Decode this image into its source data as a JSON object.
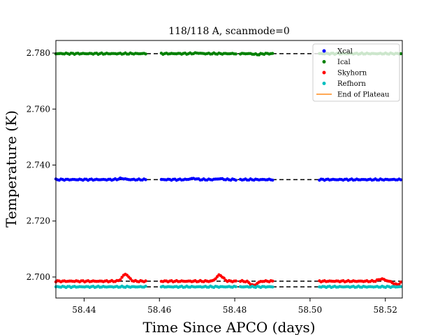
{
  "chart_data": {
    "type": "scatter",
    "title": "118/118 A, scanmode=0",
    "xlabel": "Time Since APCO (days)",
    "ylabel": "Temperature (K)",
    "xlim": [
      58.4325,
      58.5245
    ],
    "ylim": [
      2.6925,
      2.7845
    ],
    "xticks": [
      58.44,
      58.46,
      58.48,
      58.5,
      58.52
    ],
    "xtick_labels": [
      "58.44",
      "58.46",
      "58.48",
      "58.50",
      "58.52"
    ],
    "yticks": [
      2.7,
      2.72,
      2.74,
      2.76,
      2.78
    ],
    "ytick_labels": [
      "2.700",
      "2.720",
      "2.740",
      "2.760",
      "2.780"
    ],
    "legend_position": "top-right",
    "data_segments": [
      [
        58.4325,
        58.4565
      ],
      [
        58.4605,
        58.4805
      ],
      [
        58.4815,
        58.4905
      ],
      [
        58.5025,
        58.5245
      ]
    ],
    "series": [
      {
        "name": "Xcal",
        "color": "#0000ff",
        "base": 2.7348,
        "bumps": [
          [
            58.45,
            0.0004
          ],
          [
            58.469,
            0.0004
          ],
          [
            58.476,
            0.0003
          ]
        ]
      },
      {
        "name": "Ical",
        "color": "#008000",
        "base": 2.7798,
        "bumps": [
          [
            58.47,
            0.0002
          ],
          [
            58.486,
            -0.0003
          ]
        ]
      },
      {
        "name": "Skyhorn",
        "color": "#ff0000",
        "base": 2.6985,
        "bumps": [
          [
            58.451,
            0.0025
          ],
          [
            58.476,
            0.0022
          ],
          [
            58.485,
            -0.0015
          ],
          [
            58.519,
            0.0008
          ],
          [
            58.523,
            -0.0012
          ]
        ]
      },
      {
        "name": "Refhorn",
        "color": "#00bfbf",
        "base": 2.6965,
        "bumps": []
      }
    ],
    "reference_lines": [
      {
        "color": "#000000",
        "style": "dashed",
        "y": 2.7798
      },
      {
        "color": "#000000",
        "style": "dashed",
        "y": 2.7348
      },
      {
        "color": "#000000",
        "style": "dashed",
        "y": 2.6985
      },
      {
        "color": "#000000",
        "style": "dashed",
        "y": 2.6965
      }
    ],
    "legend_extra": {
      "name": "End of Plateau",
      "color": "#ff8c1a"
    }
  }
}
